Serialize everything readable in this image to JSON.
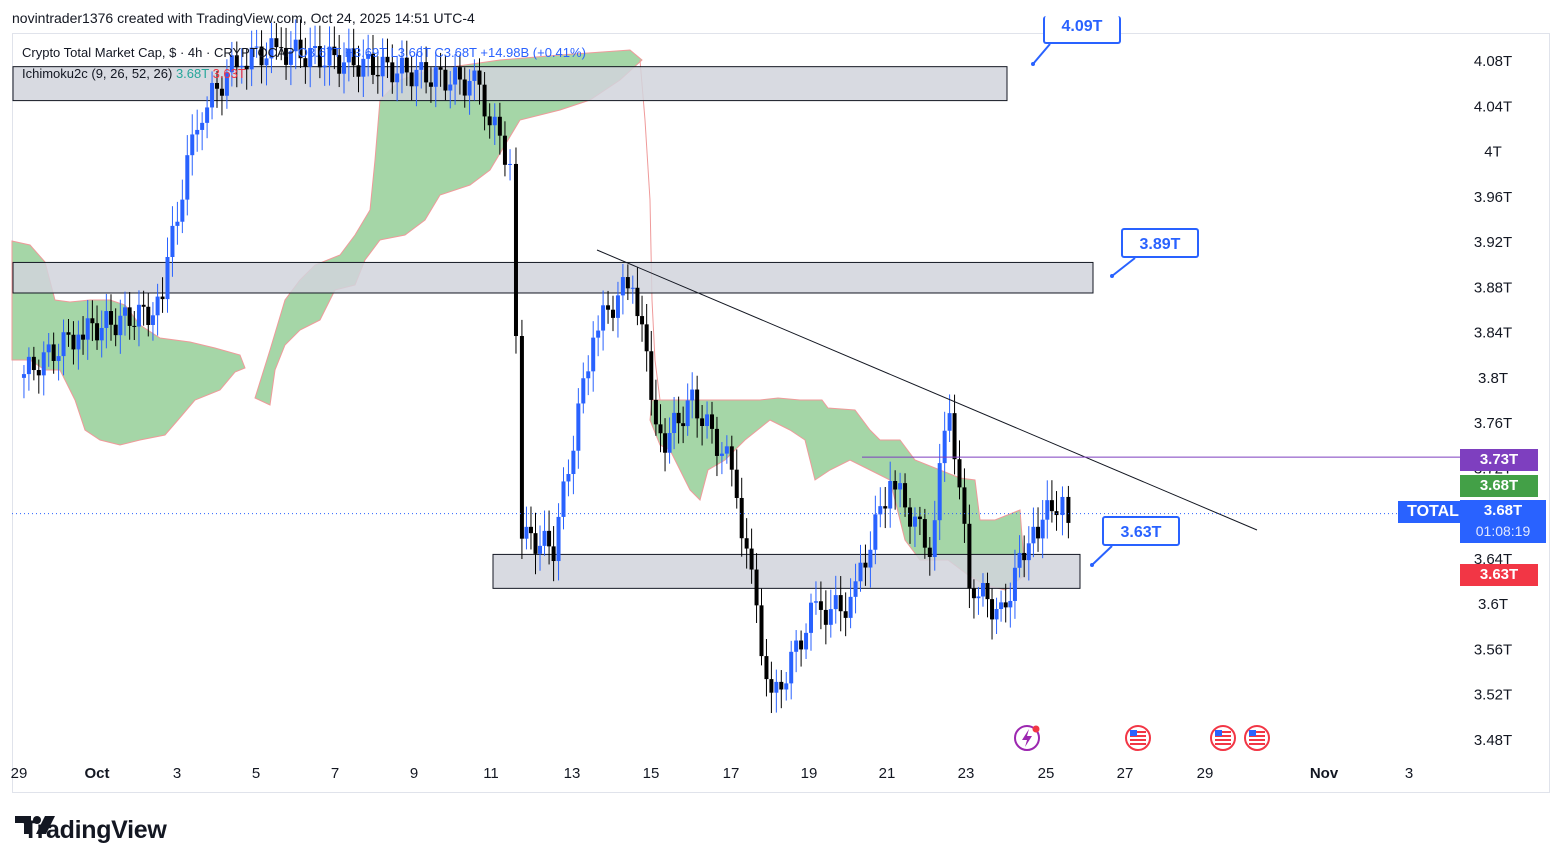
{
  "header": {
    "text": "novintrader1376 created with TradingView.com, Oct 24, 2025 14:51 UTC-4"
  },
  "legend": {
    "symbol": "Crypto Total Market Cap, $ · 4h · CRYPTOCAP",
    "ohlc": "O3.67T H3.69T L3.66T C3.68T +14.98B (+0.41%)",
    "ichimoku_label": "Ichimoku2c (9, 26, 52, 26)",
    "ichimoku_v1": "3.68T",
    "ichimoku_v2": "3.63T"
  },
  "price_axis": {
    "ticks": [
      "4.08T",
      "4.04T",
      "4T",
      "3.96T",
      "3.92T",
      "3.88T",
      "3.84T",
      "3.8T",
      "3.76T",
      "3.72T",
      "3.68T",
      "3.64T",
      "3.6T",
      "3.56T",
      "3.52T",
      "3.48T"
    ],
    "tags": {
      "purple": "3.73T",
      "green": "3.68T",
      "blue_price": "3.68T",
      "blue_timer": "01:08:19",
      "red": "3.63T",
      "symbol": "TOTAL"
    }
  },
  "time_axis": {
    "ticks": [
      "29",
      "Oct",
      "3",
      "5",
      "7",
      "9",
      "11",
      "13",
      "15",
      "17",
      "19",
      "21",
      "23",
      "25",
      "27",
      "29",
      "Nov",
      "3"
    ]
  },
  "callouts": {
    "top": "4.09T",
    "mid": "3.89T",
    "low": "3.63T"
  },
  "colors": {
    "bull": "#2962ff",
    "bear": "#000000",
    "cloud": "#a5d6a7",
    "cloud_edge": "#ef9a9a",
    "zone": "#d1d4dc",
    "purple": "#7e3fbf",
    "green": "#43a047",
    "red": "#f23645",
    "blue": "#2962ff"
  },
  "icons": [
    "lightning-event-icon",
    "us-flag-icon",
    "us-flag-icon",
    "us-flag-icon"
  ],
  "brand": {
    "name": "TradingView"
  },
  "chart_data": {
    "type": "candlestick",
    "title": "Crypto Total Market Cap, $ · 4h · CRYPTOCAP",
    "ylim": [
      3.46,
      4.11
    ],
    "x_ticks": [
      "29",
      "Oct",
      "3",
      "5",
      "7",
      "9",
      "11",
      "13",
      "15",
      "17",
      "19",
      "21",
      "23",
      "25",
      "27",
      "29",
      "Nov",
      "3"
    ],
    "y_unit": "T",
    "horizontal_zones": [
      {
        "from": 4.045,
        "to": 4.075
      },
      {
        "from": 3.875,
        "to": 3.902
      },
      {
        "from": 3.614,
        "to": 3.644
      }
    ],
    "trendline": {
      "from": [
        13.5,
        3.915
      ],
      "to": [
        28.6,
        3.67
      ]
    },
    "key_levels": {
      "resistance": 3.73,
      "last": 3.68,
      "support": 3.63
    },
    "candles_approx": [
      {
        "day": 29,
        "close": 3.8
      },
      {
        "day": 30.5,
        "close": 3.84
      },
      {
        "day": 1.5,
        "close": 3.86
      },
      {
        "day": 2.5,
        "close": 4.03
      },
      {
        "day": 3.5,
        "close": 4.08
      },
      {
        "day": 4.5,
        "close": 4.09
      },
      {
        "day": 9.5,
        "close": 4.06
      },
      {
        "day": 10.4,
        "close": 3.99
      },
      {
        "day": 10.7,
        "close": 3.66
      },
      {
        "day": 11.5,
        "close": 3.65
      },
      {
        "day": 12.5,
        "close": 3.84
      },
      {
        "day": 13.5,
        "close": 3.89
      },
      {
        "day": 14.2,
        "close": 3.74
      },
      {
        "day": 15,
        "close": 3.78
      },
      {
        "day": 16,
        "close": 3.72
      },
      {
        "day": 16.5,
        "close": 3.62
      },
      {
        "day": 17,
        "close": 3.51
      },
      {
        "day": 18,
        "close": 3.59
      },
      {
        "day": 19,
        "close": 3.6
      },
      {
        "day": 20,
        "close": 3.71
      },
      {
        "day": 21,
        "close": 3.65
      },
      {
        "day": 21.5,
        "close": 3.78
      },
      {
        "day": 22,
        "close": 3.62
      },
      {
        "day": 22.8,
        "close": 3.59
      },
      {
        "day": 23.5,
        "close": 3.66
      },
      {
        "day": 24.2,
        "close": 3.69
      },
      {
        "day": 24.5,
        "close": 3.68
      }
    ]
  }
}
